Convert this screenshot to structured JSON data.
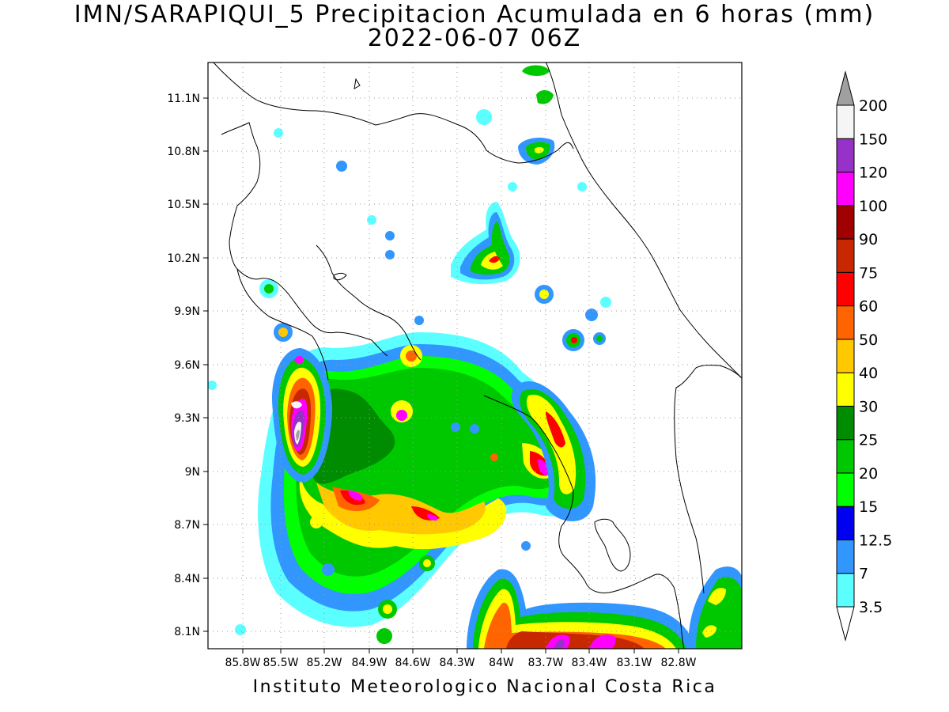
{
  "title": {
    "line1": "IMN/SARAPIQUI_5 Precipitacion Acumulada en 6 horas (mm)",
    "line2": "2022-06-07 06Z"
  },
  "footer": "Instituto Meteorologico Nacional Costa Rica",
  "map": {
    "lon_range": [
      -86.06,
      -82.56
    ],
    "lat_range": [
      8.0,
      11.3
    ],
    "lat_ticks": [
      "11.1N",
      "10.8N",
      "10.5N",
      "10.2N",
      "9.9N",
      "9.6N",
      "9.3N",
      "9N",
      "8.7N",
      "8.4N",
      "8.1N"
    ],
    "lon_ticks": [
      "85.8W",
      "85.5W",
      "85.2W",
      "84.9W",
      "84.6W",
      "84.3W",
      "84W",
      "83.7W",
      "83.4W",
      "83.1W",
      "82.8W"
    ],
    "gridlines": true
  },
  "colorbar": {
    "levels": [
      "3.5",
      "7",
      "12.5",
      "15",
      "20",
      "25",
      "30",
      "40",
      "50",
      "60",
      "75",
      "90",
      "100",
      "120",
      "150",
      "200"
    ],
    "colors": [
      "#5cffff",
      "#3296ff",
      "#0000f0",
      "#00ff00",
      "#00c800",
      "#008c00",
      "#ffff00",
      "#ffc800",
      "#ff6400",
      "#ff0000",
      "#c82800",
      "#a00000",
      "#ff00ff",
      "#9632c8",
      "#f5f5f5",
      "#a0a0a0"
    ]
  }
}
